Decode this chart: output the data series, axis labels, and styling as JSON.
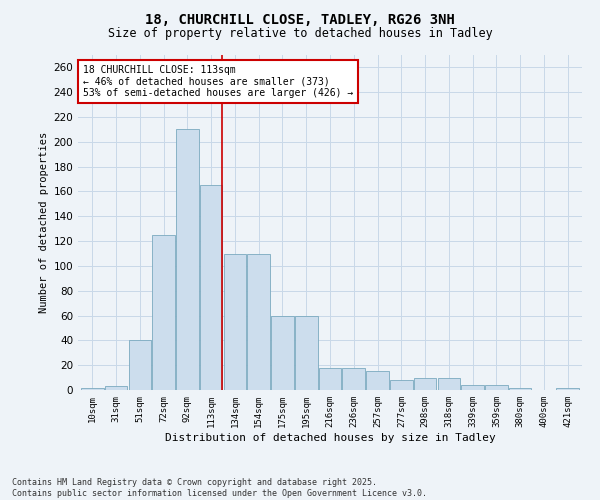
{
  "title_line1": "18, CHURCHILL CLOSE, TADLEY, RG26 3NH",
  "title_line2": "Size of property relative to detached houses in Tadley",
  "xlabel": "Distribution of detached houses by size in Tadley",
  "ylabel": "Number of detached properties",
  "categories": [
    "10sqm",
    "31sqm",
    "51sqm",
    "72sqm",
    "92sqm",
    "113sqm",
    "134sqm",
    "154sqm",
    "175sqm",
    "195sqm",
    "216sqm",
    "236sqm",
    "257sqm",
    "277sqm",
    "298sqm",
    "318sqm",
    "339sqm",
    "359sqm",
    "380sqm",
    "400sqm",
    "421sqm"
  ],
  "values": [
    2,
    3,
    40,
    125,
    210,
    165,
    110,
    110,
    60,
    60,
    18,
    18,
    15,
    8,
    10,
    10,
    4,
    4,
    2,
    0,
    2
  ],
  "bar_color": "#ccdded",
  "bar_edge_color": "#7aaabf",
  "grid_color": "#c8d8e8",
  "background_color": "#eef3f8",
  "vline_color": "#cc0000",
  "annotation_text": "18 CHURCHILL CLOSE: 113sqm\n← 46% of detached houses are smaller (373)\n53% of semi-detached houses are larger (426) →",
  "annotation_box_color": "#ffffff",
  "annotation_box_edge": "#cc0000",
  "footer_text": "Contains HM Land Registry data © Crown copyright and database right 2025.\nContains public sector information licensed under the Open Government Licence v3.0.",
  "ylim": [
    0,
    270
  ],
  "yticks": [
    0,
    20,
    40,
    60,
    80,
    100,
    120,
    140,
    160,
    180,
    200,
    220,
    240,
    260
  ]
}
